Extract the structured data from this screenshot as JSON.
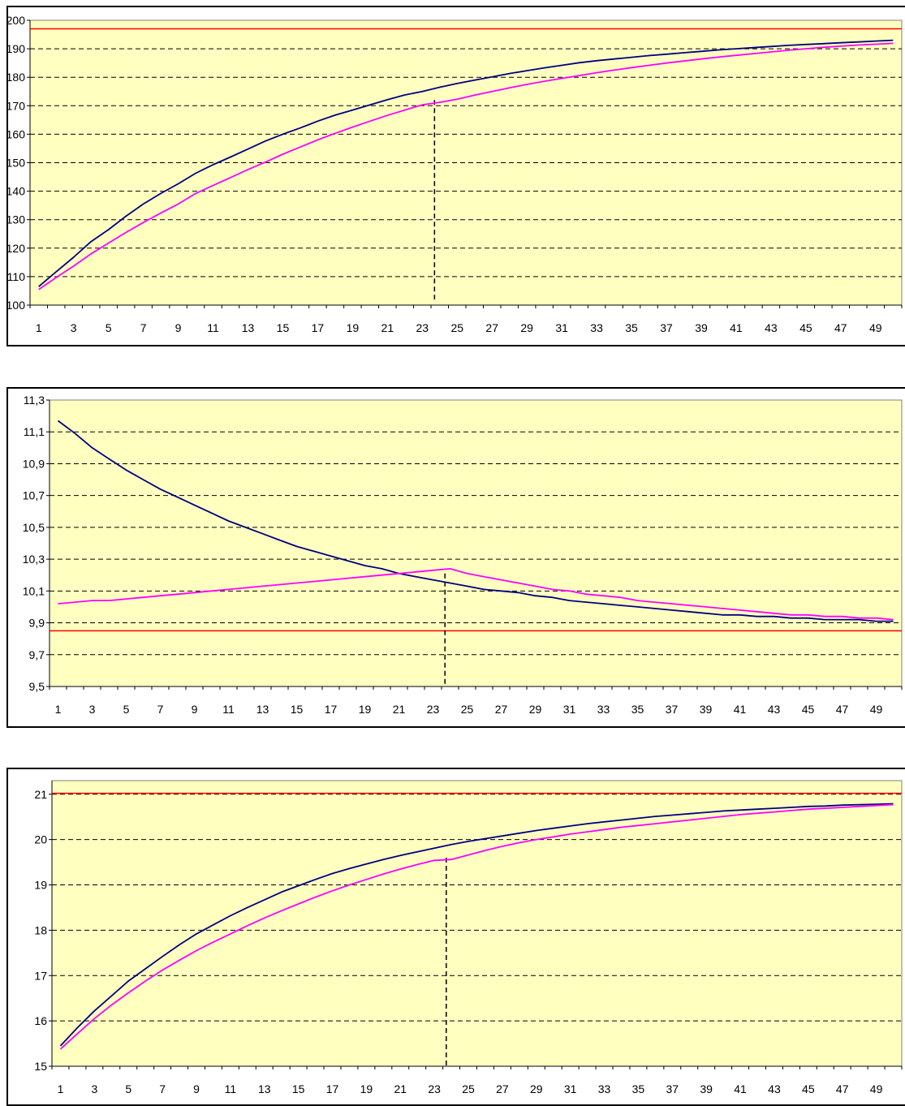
{
  "chart_data": [
    {
      "type": "line",
      "title": "",
      "xlabel": "",
      "ylabel": "",
      "x_tick_labels": [
        "1",
        "3",
        "5",
        "7",
        "9",
        "11",
        "13",
        "15",
        "17",
        "19",
        "21",
        "23",
        "25",
        "27",
        "29",
        "31",
        "33",
        "35",
        "37",
        "39",
        "41",
        "43",
        "45",
        "47",
        "49"
      ],
      "y_tick_labels": [
        "100",
        "110",
        "120",
        "130",
        "140",
        "150",
        "160",
        "170",
        "180",
        "190",
        "200"
      ],
      "ylim": [
        100,
        200
      ],
      "xlim": [
        1,
        50
      ],
      "grid": "horizontal dashed",
      "plot_background": "#FFFFC0",
      "reference_line": {
        "y": 197,
        "color": "#FF0000"
      },
      "vertical_marker": {
        "x": 23.7,
        "from": 102,
        "to": 172,
        "style": "dashed"
      },
      "series": [
        {
          "color": "#000080",
          "values": [
            106.5,
            111.7,
            116.8,
            122.3,
            126.5,
            131.2,
            135.5,
            139.2,
            142.6,
            146.3,
            149.3,
            152.0,
            154.8,
            157.6,
            160.0,
            162.2,
            164.6,
            166.7,
            168.5,
            170.3,
            172.1,
            173.8,
            175.0,
            176.5,
            177.8,
            179.0,
            180.1,
            181.3,
            182.3,
            183.3,
            184.2,
            185.1,
            185.8,
            186.4,
            187.0,
            187.6,
            188.1,
            188.6,
            189.1,
            189.6,
            190.0,
            190.4,
            190.8,
            191.2,
            191.5,
            191.8,
            192.1,
            192.4,
            192.7,
            193.0
          ]
        },
        {
          "color": "#FF00FF",
          "values": [
            105.5,
            109.7,
            113.7,
            118.0,
            121.8,
            125.5,
            129.0,
            132.3,
            135.5,
            139.2,
            142.0,
            144.8,
            147.6,
            150.2,
            153.0,
            155.5,
            158.0,
            160.3,
            162.5,
            164.6,
            166.6,
            168.5,
            170.3,
            171.2,
            172.3,
            173.7,
            175.0,
            176.3,
            177.5,
            178.6,
            179.6,
            180.6,
            181.6,
            182.5,
            183.4,
            184.2,
            185.0,
            185.7,
            186.4,
            187.1,
            187.7,
            188.3,
            188.9,
            189.5,
            190.0,
            190.5,
            190.9,
            191.3,
            191.6,
            191.9
          ]
        }
      ]
    },
    {
      "type": "line",
      "title": "",
      "xlabel": "",
      "ylabel": "",
      "x_tick_labels": [
        "1",
        "3",
        "5",
        "7",
        "9",
        "11",
        "13",
        "15",
        "17",
        "19",
        "21",
        "23",
        "25",
        "27",
        "29",
        "31",
        "33",
        "35",
        "37",
        "39",
        "41",
        "43",
        "45",
        "47",
        "49"
      ],
      "y_tick_labels": [
        "9,5",
        "9,7",
        "9,9",
        "10,1",
        "10,3",
        "10,5",
        "10,7",
        "10,9",
        "11,1",
        "11,3"
      ],
      "ylim": [
        9.5,
        11.3
      ],
      "xlim": [
        1,
        50
      ],
      "grid": "horizontal dashed",
      "plot_background": "#FFFFC0",
      "reference_line": {
        "y": 9.85,
        "color": "#FF0000"
      },
      "vertical_marker": {
        "x": 23.7,
        "from": 9.5,
        "to": 10.21,
        "style": "dashed"
      },
      "series": [
        {
          "color": "#000080",
          "values": [
            11.17,
            11.09,
            11.0,
            10.93,
            10.86,
            10.8,
            10.74,
            10.69,
            10.64,
            10.59,
            10.54,
            10.5,
            10.46,
            10.42,
            10.38,
            10.35,
            10.32,
            10.29,
            10.26,
            10.24,
            10.21,
            10.19,
            10.17,
            10.15,
            10.13,
            10.11,
            10.1,
            10.09,
            10.07,
            10.06,
            10.04,
            10.03,
            10.02,
            10.01,
            10.0,
            9.99,
            9.98,
            9.97,
            9.96,
            9.95,
            9.95,
            9.94,
            9.94,
            9.93,
            9.93,
            9.92,
            9.92,
            9.92,
            9.91,
            9.91
          ]
        },
        {
          "color": "#FF00FF",
          "values": [
            10.02,
            10.03,
            10.04,
            10.04,
            10.05,
            10.06,
            10.07,
            10.08,
            10.09,
            10.1,
            10.11,
            10.12,
            10.13,
            10.14,
            10.15,
            10.16,
            10.17,
            10.18,
            10.19,
            10.2,
            10.21,
            10.22,
            10.23,
            10.24,
            10.21,
            10.19,
            10.17,
            10.15,
            10.13,
            10.11,
            10.1,
            10.08,
            10.07,
            10.06,
            10.04,
            10.03,
            10.02,
            10.01,
            10.0,
            9.99,
            9.98,
            9.97,
            9.96,
            9.95,
            9.95,
            9.94,
            9.94,
            9.93,
            9.93,
            9.92
          ]
        }
      ]
    },
    {
      "type": "line",
      "title": "",
      "xlabel": "",
      "ylabel": "",
      "x_tick_labels": [
        "1",
        "3",
        "5",
        "7",
        "9",
        "11",
        "13",
        "15",
        "17",
        "19",
        "21",
        "23",
        "25",
        "27",
        "29",
        "31",
        "33",
        "35",
        "37",
        "39",
        "41",
        "43",
        "45",
        "47",
        "49"
      ],
      "y_tick_labels": [
        "15",
        "16",
        "17",
        "18",
        "19",
        "20",
        "21"
      ],
      "ylim": [
        15,
        21.3
      ],
      "xlim": [
        1,
        50
      ],
      "grid": "horizontal dashed",
      "plot_background": "#FFFFC0",
      "reference_line": {
        "y": 21.02,
        "color": "#FF0000"
      },
      "vertical_marker": {
        "x": 23.7,
        "from": 15,
        "to": 19.6,
        "style": "dashed"
      },
      "series": [
        {
          "color": "#000080",
          "values": [
            15.45,
            15.85,
            16.22,
            16.55,
            16.88,
            17.15,
            17.42,
            17.68,
            17.92,
            18.12,
            18.32,
            18.5,
            18.67,
            18.84,
            18.98,
            19.12,
            19.25,
            19.36,
            19.46,
            19.56,
            19.65,
            19.73,
            19.81,
            19.89,
            19.96,
            20.02,
            20.08,
            20.14,
            20.2,
            20.25,
            20.3,
            20.35,
            20.39,
            20.43,
            20.47,
            20.51,
            20.54,
            20.57,
            20.6,
            20.63,
            20.65,
            20.67,
            20.69,
            20.71,
            20.73,
            20.74,
            20.76,
            20.77,
            20.78,
            20.79
          ]
        },
        {
          "color": "#FF00FF",
          "values": [
            15.38,
            15.72,
            16.05,
            16.35,
            16.62,
            16.88,
            17.12,
            17.34,
            17.55,
            17.74,
            17.92,
            18.1,
            18.27,
            18.43,
            18.58,
            18.73,
            18.87,
            19.0,
            19.12,
            19.24,
            19.35,
            19.45,
            19.54,
            19.56,
            19.66,
            19.76,
            19.85,
            19.93,
            20.0,
            20.06,
            20.12,
            20.17,
            20.22,
            20.27,
            20.31,
            20.35,
            20.39,
            20.43,
            20.47,
            20.51,
            20.55,
            20.58,
            20.61,
            20.64,
            20.67,
            20.69,
            20.71,
            20.73,
            20.75,
            20.77
          ]
        }
      ]
    }
  ]
}
